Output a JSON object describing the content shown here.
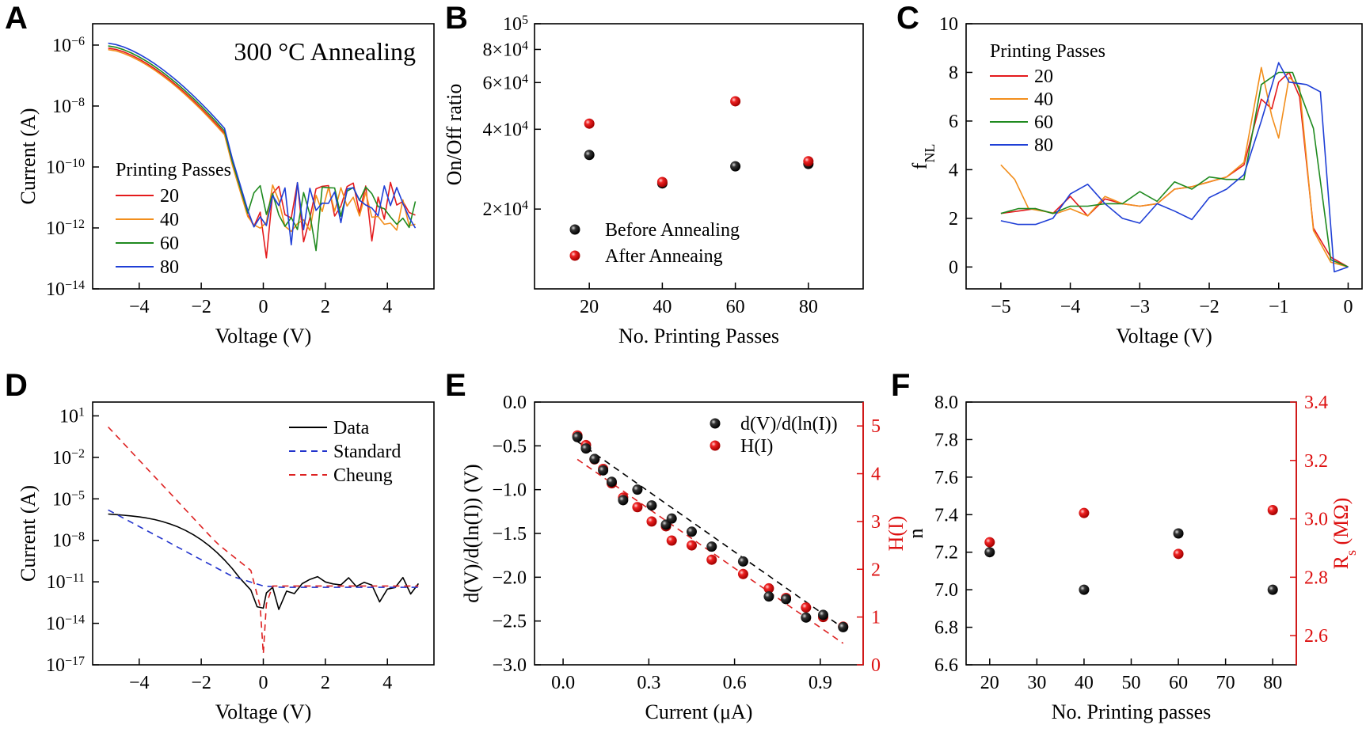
{
  "colors": {
    "black": "#000000",
    "red": "#e41a1c",
    "orange": "#f28e1c",
    "green": "#1f8a1f",
    "blue": "#1f3fd6",
    "dash_blue": "#2233cc",
    "dash_red": "#dd2222",
    "axis_red": "#dd1111"
  },
  "chart_data": [
    {
      "panel": "A",
      "type": "line",
      "annotation": "300 °C Annealing",
      "xlabel": "Voltage (V)",
      "ylabel": "Current (A)",
      "xlim": [
        -5.5,
        5.5
      ],
      "ylim": [
        -14,
        -5.3
      ],
      "yscale": "log",
      "xticks": [
        -4,
        -2,
        0,
        2,
        4
      ],
      "xtick_labels": [
        "−4",
        "−2",
        "0",
        "2",
        "4"
      ],
      "yticks": [
        -6,
        -8,
        -10,
        -12,
        -14
      ],
      "ytick_bases": [
        "10",
        "10",
        "10",
        "10",
        "10"
      ],
      "ytick_exps": [
        "−6",
        "−8",
        "−10",
        "−12",
        "−14"
      ],
      "legend_title": "Printing Passes",
      "legend_position": "bottom-left",
      "series": [
        {
          "name": "20",
          "color": "red"
        },
        {
          "name": "40",
          "color": "orange"
        },
        {
          "name": "60",
          "color": "green"
        },
        {
          "name": "80",
          "color": "blue"
        }
      ]
    },
    {
      "panel": "B",
      "type": "scatter",
      "xlabel": "No. Printing Passes",
      "ylabel": "On/Off ratio",
      "xlim": [
        5,
        95
      ],
      "ylim": [
        10000,
        100000
      ],
      "yscale": "log",
      "xticks": [
        20,
        40,
        60,
        80
      ],
      "xtick_labels": [
        "20",
        "40",
        "60",
        "80"
      ],
      "yticks": [
        20000,
        40000,
        60000,
        80000,
        100000
      ],
      "ytick_mant": [
        "2×10",
        "4×10",
        "6×10",
        "8×10",
        "10"
      ],
      "ytick_exps": [
        "4",
        "4",
        "4",
        "4",
        "5"
      ],
      "legend_position": "bottom-center",
      "series": [
        {
          "name": "Before Annealing",
          "color": "black",
          "x": [
            20,
            40,
            60,
            80
          ],
          "y": [
            32000,
            25000,
            29000,
            29600
          ]
        },
        {
          "name": "After Anneaing",
          "color": "red",
          "x": [
            20,
            40,
            60,
            80
          ],
          "y": [
            42000,
            25300,
            51000,
            30300
          ]
        }
      ]
    },
    {
      "panel": "C",
      "type": "line",
      "xlabel": "Voltage (V)",
      "ylabel_main": "f",
      "ylabel_sub": "NL",
      "xlim": [
        -5.5,
        0.2
      ],
      "ylim": [
        -0.9,
        10
      ],
      "xticks": [
        -5,
        -4,
        -3,
        -2,
        -1,
        0
      ],
      "xtick_labels": [
        "−5",
        "−4",
        "−3",
        "−2",
        "−1",
        "0"
      ],
      "yticks": [
        0,
        2,
        4,
        6,
        8,
        10
      ],
      "ytick_labels": [
        "0",
        "2",
        "4",
        "6",
        "8",
        "10"
      ],
      "legend_title": "Printing Passes",
      "legend_position": "top-left",
      "series": [
        {
          "name": "20",
          "color": "red",
          "x": [
            -5,
            -4.75,
            -4.5,
            -4.25,
            -4,
            -3.75,
            -3.5,
            -3.25,
            -3,
            -2.75,
            -2.5,
            -2.25,
            -2,
            -1.75,
            -1.5,
            -1.25,
            -1.1,
            -1,
            -0.85,
            -0.7,
            -0.5,
            -0.25,
            0
          ],
          "y": [
            2.2,
            2.3,
            2.4,
            2.2,
            2.9,
            2.1,
            2.8,
            2.6,
            2.5,
            2.6,
            3.2,
            3.3,
            3.5,
            3.7,
            4.2,
            6.9,
            6.5,
            7.6,
            8.0,
            7.0,
            1.6,
            0.4,
            0.0
          ]
        },
        {
          "name": "40",
          "color": "orange",
          "x": [
            -5,
            -4.8,
            -4.6,
            -4.4,
            -4.2,
            -4,
            -3.75,
            -3.5,
            -3.25,
            -3,
            -2.75,
            -2.5,
            -2.25,
            -2,
            -1.75,
            -1.5,
            -1.25,
            -1.1,
            -1,
            -0.85,
            -0.7,
            -0.5,
            -0.25,
            0
          ],
          "y": [
            4.2,
            3.6,
            2.4,
            2.3,
            2.2,
            2.4,
            2.1,
            2.9,
            2.6,
            2.5,
            2.6,
            3.2,
            3.3,
            3.5,
            3.7,
            4.3,
            8.2,
            6.2,
            5.3,
            7.8,
            7.4,
            1.5,
            0.2,
            0.0
          ]
        },
        {
          "name": "60",
          "color": "green",
          "x": [
            -5,
            -4.75,
            -4.5,
            -4.25,
            -4,
            -3.75,
            -3.5,
            -3.25,
            -3,
            -2.75,
            -2.5,
            -2.25,
            -2,
            -1.75,
            -1.5,
            -1.25,
            -1,
            -0.8,
            -0.5,
            -0.25,
            0
          ],
          "y": [
            2.2,
            2.4,
            2.4,
            2.2,
            2.5,
            2.5,
            2.6,
            2.6,
            3.1,
            2.7,
            3.5,
            3.2,
            3.7,
            3.6,
            3.6,
            7.5,
            8.0,
            8.0,
            5.7,
            0.3,
            0.0
          ]
        },
        {
          "name": "80",
          "color": "blue",
          "x": [
            -5,
            -4.75,
            -4.5,
            -4.25,
            -4,
            -3.75,
            -3.5,
            -3.25,
            -3,
            -2.75,
            -2.5,
            -2.25,
            -2,
            -1.75,
            -1.5,
            -1.25,
            -1,
            -0.85,
            -0.6,
            -0.4,
            -0.2,
            0
          ],
          "y": [
            1.9,
            1.75,
            1.75,
            2.0,
            3.0,
            3.4,
            2.6,
            2.0,
            1.8,
            2.6,
            2.3,
            1.95,
            2.85,
            3.2,
            3.8,
            6.0,
            8.4,
            7.6,
            7.5,
            7.2,
            -0.2,
            0.0
          ]
        }
      ]
    },
    {
      "panel": "D",
      "type": "line",
      "xlabel": "Voltage (V)",
      "ylabel": "Current (A)",
      "xlim": [
        -5.5,
        5.5
      ],
      "ylim": [
        -17,
        2
      ],
      "yscale": "log",
      "xticks": [
        -4,
        -2,
        0,
        2,
        4
      ],
      "xtick_labels": [
        "−4",
        "−2",
        "0",
        "2",
        "4"
      ],
      "yticks": [
        1,
        -2,
        -5,
        -8,
        -11,
        -14,
        -17
      ],
      "ytick_bases": [
        "10",
        "10",
        "10",
        "10",
        "10",
        "10",
        "10"
      ],
      "ytick_exps": [
        "1",
        "−2",
        "−5",
        "−8",
        "−11",
        "−14",
        "−17"
      ],
      "legend_position": "top-right",
      "series": [
        {
          "name": "Data",
          "color": "black",
          "style": "solid"
        },
        {
          "name": "Standard",
          "color": "dash_blue",
          "style": "dashed"
        },
        {
          "name": "Cheung",
          "color": "dash_red",
          "style": "dashed"
        }
      ]
    },
    {
      "panel": "E",
      "type": "scatter",
      "xlabel": "Current (μA)",
      "ylabel": "d(V)/d(ln(I)) (V)",
      "ylabel_right": "H(I)",
      "xlim": [
        -0.1,
        1.05
      ],
      "ylim": [
        -3.0,
        0.0
      ],
      "ylim_right": [
        0,
        5.5
      ],
      "xticks": [
        0.0,
        0.3,
        0.6,
        0.9
      ],
      "xtick_labels": [
        "0.0",
        "0.3",
        "0.6",
        "0.9"
      ],
      "yticks": [
        0.0,
        -0.5,
        -1.0,
        -1.5,
        -2.0,
        -2.5,
        -3.0
      ],
      "ytick_labels": [
        "0.0",
        "−0.5",
        "−1.0",
        "−1.5",
        "−2.0",
        "−2.5",
        "−3.0"
      ],
      "yticks_right": [
        0,
        1,
        2,
        3,
        4,
        5
      ],
      "ytick_right_labels": [
        "0",
        "1",
        "2",
        "3",
        "4",
        "5"
      ],
      "legend_position": "top-right",
      "series": [
        {
          "name": "d(V)/d(ln(I))",
          "color": "black",
          "axis": "left",
          "x": [
            0.05,
            0.08,
            0.11,
            0.14,
            0.17,
            0.21,
            0.26,
            0.31,
            0.36,
            0.38,
            0.45,
            0.52,
            0.63,
            0.72,
            0.78,
            0.85,
            0.91,
            0.98
          ],
          "y": [
            -0.4,
            -0.53,
            -0.65,
            -0.78,
            -0.91,
            -1.12,
            -1.0,
            -1.18,
            -1.4,
            -1.33,
            -1.48,
            -1.65,
            -1.82,
            -2.22,
            -2.25,
            -2.46,
            -2.43,
            -2.57
          ]
        },
        {
          "name": "H(I)",
          "color": "red",
          "axis": "right",
          "x": [
            0.05,
            0.08,
            0.11,
            0.14,
            0.17,
            0.21,
            0.26,
            0.31,
            0.36,
            0.38,
            0.45,
            0.52,
            0.63,
            0.72,
            0.78,
            0.85,
            0.91,
            0.98
          ],
          "y": [
            4.8,
            4.6,
            4.3,
            4.1,
            3.8,
            3.5,
            3.3,
            3.0,
            2.9,
            2.6,
            2.5,
            2.2,
            1.9,
            1.6,
            1.4,
            1.2,
            1.0,
            0.8
          ]
        }
      ]
    },
    {
      "panel": "F",
      "type": "scatter",
      "xlabel": "No. Printing passes",
      "ylabel": "n",
      "ylabel_right_main": "R",
      "ylabel_right_sub": "s",
      "ylabel_right_unit": " (MΩ)",
      "xlim": [
        15,
        85
      ],
      "ylim": [
        6.6,
        8.0
      ],
      "ylim_right": [
        2.5,
        3.4
      ],
      "xticks": [
        20,
        30,
        40,
        50,
        60,
        70,
        80
      ],
      "xtick_labels": [
        "20",
        "30",
        "40",
        "50",
        "60",
        "70",
        "80"
      ],
      "yticks": [
        6.6,
        6.8,
        7.0,
        7.2,
        7.4,
        7.6,
        7.8,
        8.0
      ],
      "ytick_labels": [
        "6.6",
        "6.8",
        "7.0",
        "7.2",
        "7.4",
        "7.6",
        "7.8",
        "8.0"
      ],
      "yticks_right": [
        2.6,
        2.8,
        3.0,
        3.2,
        3.4
      ],
      "ytick_right_labels": [
        "2.6",
        "2.8",
        "3.0",
        "3.2",
        "3.4"
      ],
      "series": [
        {
          "name": "n",
          "color": "black",
          "axis": "left",
          "x": [
            20,
            40,
            60,
            80
          ],
          "y": [
            7.2,
            7.0,
            7.3,
            7.0
          ]
        },
        {
          "name": "Rs",
          "color": "red",
          "axis": "right",
          "x": [
            20,
            40,
            60,
            80
          ],
          "y": [
            2.92,
            3.02,
            2.88,
            3.03
          ]
        }
      ]
    }
  ]
}
